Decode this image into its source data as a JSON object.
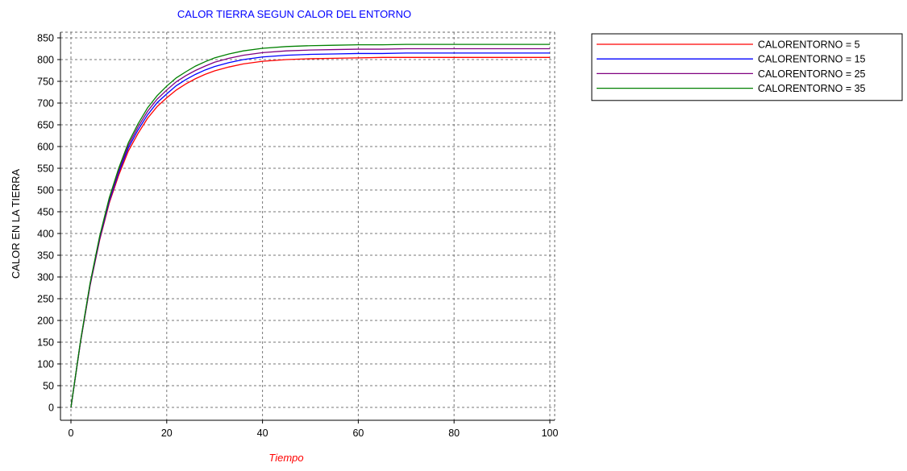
{
  "chart_data": {
    "type": "line",
    "title": "CALOR TIERRA SEGUN CALOR DEL ENTORNO",
    "xlabel": "Tiempo",
    "ylabel": "CALOR EN LA TIERRA",
    "xlim": [
      0,
      100
    ],
    "ylim": [
      0,
      850
    ],
    "x_ticks": [
      0,
      20,
      40,
      60,
      80,
      100
    ],
    "y_ticks": [
      0,
      50,
      100,
      150,
      200,
      250,
      300,
      350,
      400,
      450,
      500,
      550,
      600,
      650,
      700,
      750,
      800,
      850
    ],
    "grid": true,
    "legend_position": "top-right",
    "colors": {
      "title": "#0000ff",
      "xlabel": "#ff0000",
      "ylabel": "#000000"
    },
    "x": [
      0,
      2,
      4,
      6,
      8,
      10,
      12,
      14,
      16,
      18,
      20,
      22,
      24,
      26,
      28,
      30,
      33,
      36,
      40,
      45,
      50,
      55,
      60,
      65,
      70,
      80,
      90,
      100
    ],
    "series": [
      {
        "name": "CALORENTORNO = 5",
        "color": "#ff0000",
        "values": [
          0,
          150,
          280,
          385,
          470,
          535,
          590,
          630,
          665,
          692,
          712,
          730,
          744,
          756,
          766,
          774,
          783,
          790,
          796,
          800,
          802,
          803,
          804,
          805,
          805,
          805,
          805,
          805
        ]
      },
      {
        "name": "CALORENTORNO = 15",
        "color": "#0000ff",
        "values": [
          0,
          151,
          282,
          388,
          474,
          541,
          597,
          638,
          673,
          701,
          721,
          740,
          754,
          766,
          776,
          784,
          793,
          800,
          806,
          810,
          812,
          813,
          814,
          814,
          815,
          815,
          815,
          815
        ]
      },
      {
        "name": "CALORENTORNO = 25",
        "color": "#800080",
        "values": [
          0,
          152,
          284,
          391,
          478,
          546,
          603,
          645,
          681,
          709,
          730,
          749,
          763,
          775,
          785,
          794,
          803,
          810,
          816,
          820,
          822,
          823,
          824,
          824,
          825,
          825,
          825,
          825
        ]
      },
      {
        "name": "CALORENTORNO = 35",
        "color": "#008000",
        "values": [
          0,
          153,
          286,
          394,
          482,
          551,
          609,
          652,
          689,
          717,
          739,
          758,
          772,
          785,
          795,
          804,
          813,
          820,
          826,
          830,
          832,
          833,
          834,
          834,
          835,
          835,
          835,
          835
        ]
      }
    ]
  }
}
